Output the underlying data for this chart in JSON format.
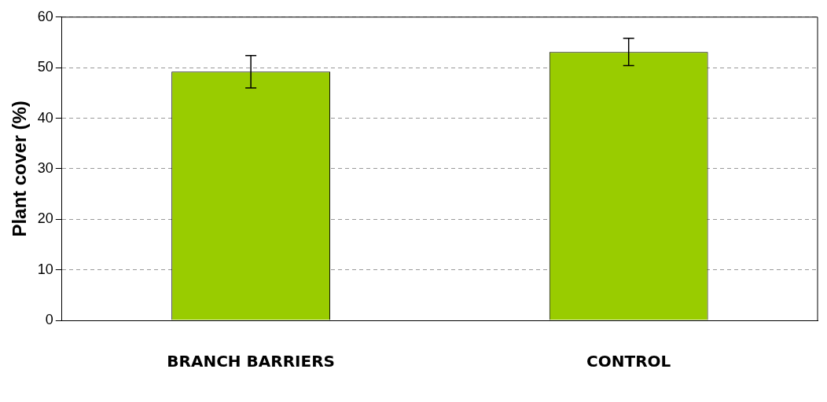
{
  "chart_data": {
    "type": "bar",
    "ylabel": "Plant cover (%)",
    "categories": [
      "BRANCH BARRIERS",
      "CONTROL"
    ],
    "values": [
      49.2,
      53.1
    ],
    "errors": [
      3.2,
      2.7
    ],
    "color": "#99cc00",
    "ylim": [
      0,
      60
    ],
    "yticks": [
      0,
      10,
      20,
      30,
      40,
      50,
      60
    ],
    "grid": "y"
  }
}
